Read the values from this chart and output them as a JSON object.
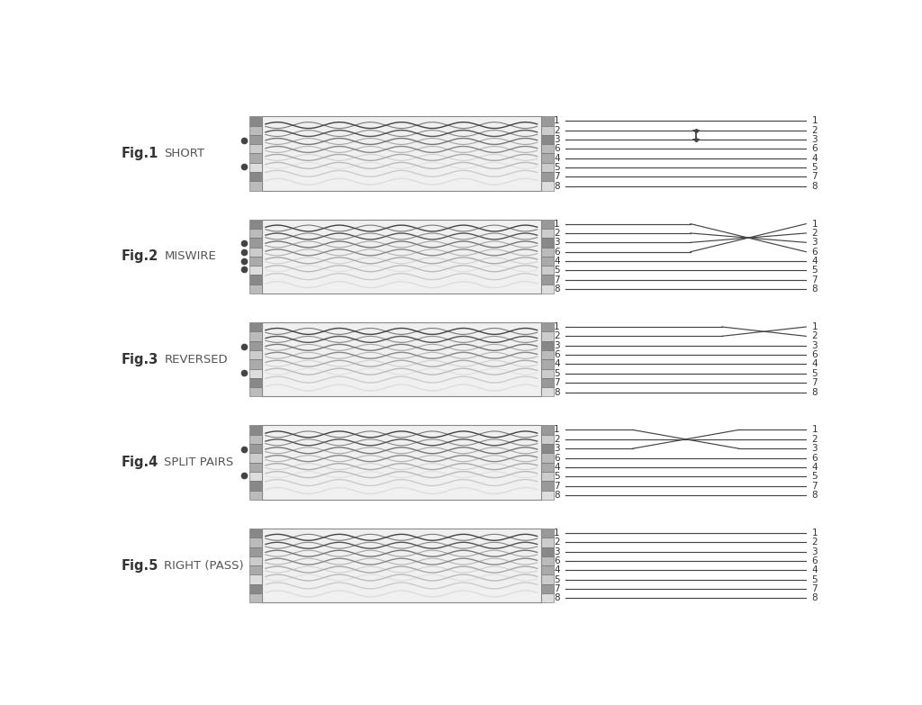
{
  "figures": [
    {
      "label": "Fig.1",
      "name": "SHORT",
      "dots": 2,
      "wire_connections": "short"
    },
    {
      "label": "Fig.2",
      "name": "MISWIRE",
      "dots": 4,
      "wire_connections": "miswire"
    },
    {
      "label": "Fig.3",
      "name": "REVERSED",
      "dots": 2,
      "wire_connections": "reversed"
    },
    {
      "label": "Fig.4",
      "name": "SPLIT PAIRS",
      "dots": 2,
      "wire_connections": "split_pairs"
    },
    {
      "label": "Fig.5",
      "name": "RIGHT (PASS)",
      "dots": 0,
      "wire_connections": "pass"
    }
  ],
  "pin_order": [
    1,
    2,
    3,
    6,
    4,
    5,
    7,
    8
  ],
  "bg_color": "#ffffff",
  "line_color": "#444444",
  "label_bold_color": "#333333",
  "label_color": "#555555"
}
